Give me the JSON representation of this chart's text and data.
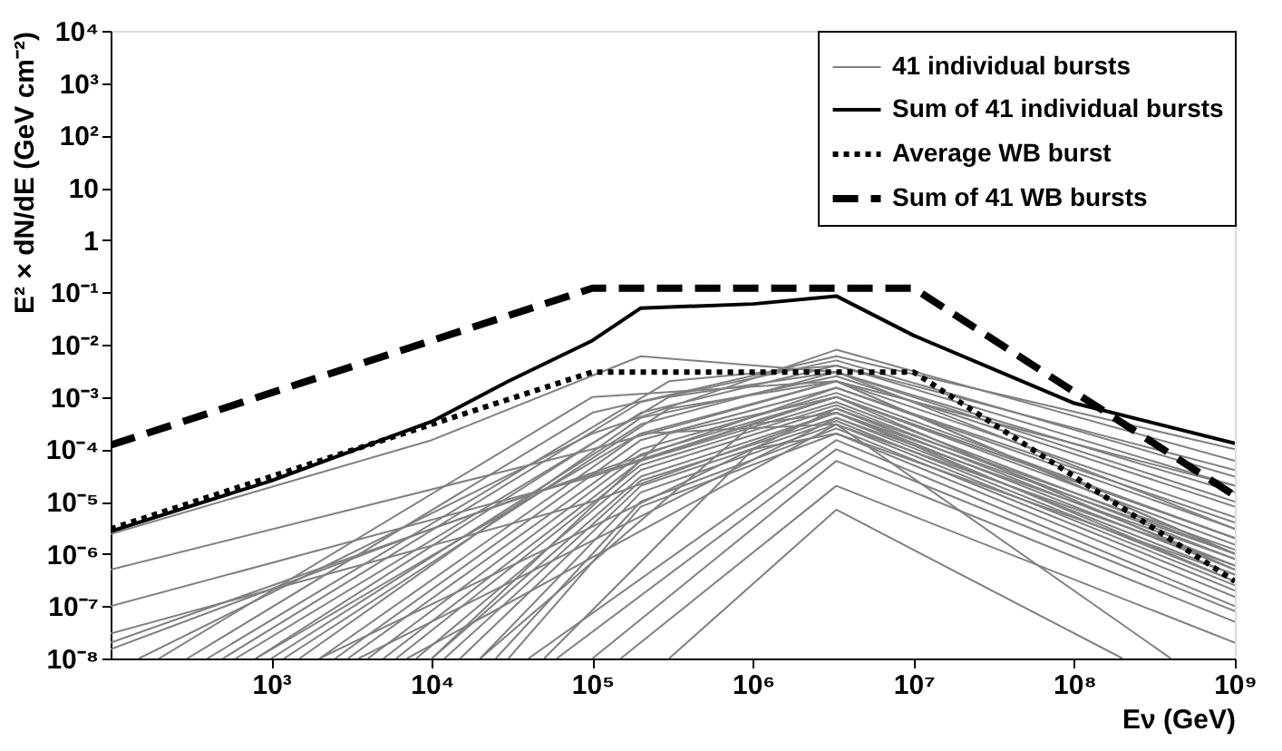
{
  "chart_data": {
    "type": "line",
    "xlabel": "Eν (GeV)",
    "ylabel": "E² × dN/dE (GeV cm⁻²)",
    "log": "xy",
    "grid": false,
    "legend": "top right",
    "marker": "none",
    "xlim": [
      100,
      1000000000
    ],
    "ylim": [
      1e-08,
      10000
    ],
    "xticks": [
      {
        "value": 1000,
        "label": "10³"
      },
      {
        "value": 10000,
        "label": "10⁴"
      },
      {
        "value": 100000,
        "label": "10⁵"
      },
      {
        "value": 1000000,
        "label": "10⁶"
      },
      {
        "value": 10000000,
        "label": "10⁷"
      },
      {
        "value": 100000000,
        "label": "10⁸"
      },
      {
        "value": 1000000000,
        "label": "10⁹"
      }
    ],
    "yticks": [
      {
        "value": 1e-08,
        "label": "10⁻⁸"
      },
      {
        "value": 1e-07,
        "label": "10⁻⁷"
      },
      {
        "value": 1e-06,
        "label": "10⁻⁶"
      },
      {
        "value": 1e-05,
        "label": "10⁻⁵"
      },
      {
        "value": 0.0001,
        "label": "10⁻⁴"
      },
      {
        "value": 0.001,
        "label": "10⁻³"
      },
      {
        "value": 0.01,
        "label": "10⁻²"
      },
      {
        "value": 0.1,
        "label": "10⁻¹"
      },
      1,
      10,
      {
        "value": 100,
        "label": "10²"
      },
      {
        "value": 1000,
        "label": "10³"
      },
      {
        "value": 10000,
        "label": "10⁴"
      }
    ],
    "series": [
      {
        "name": "41 individual bursts",
        "color": "#808080",
        "line_style": "solid",
        "x": [
          100,
          10000.0,
          200000.0,
          3300000.0,
          1000000000.0
        ],
        "values": [
          2.4e-06,
          0.00015,
          0.006,
          0.003,
          1e-05
        ]
      },
      {
        "color": "#808080",
        "line_style": "solid",
        "x": [
          100,
          100000.0,
          3300000.0,
          1000000000.0
        ],
        "values": [
          5e-07,
          0.0001,
          0.002,
          1e-06
        ]
      },
      {
        "color": "#808080",
        "line_style": "solid",
        "x": [
          100,
          100000.0,
          3300000.0,
          1000000000.0
        ],
        "values": [
          1e-07,
          3e-05,
          0.001,
          5e-07
        ]
      },
      {
        "color": "#808080",
        "line_style": "solid",
        "x": [
          100,
          100000.0,
          3300000.0,
          1000000000.0
        ],
        "values": [
          3e-08,
          1e-05,
          0.0005,
          3e-07
        ]
      },
      {
        "color": "#808080",
        "line_style": "solid",
        "x": [
          150,
          100000.0,
          3300000.0,
          1000000000.0
        ],
        "values": [
          1e-08,
          0.0002,
          0.008,
          6e-05
        ]
      },
      {
        "color": "#808080",
        "line_style": "solid",
        "x": [
          300,
          100000.0,
          3300000.0,
          1000000000.0
        ],
        "values": [
          1e-08,
          0.0005,
          0.006,
          0.0001
        ]
      },
      {
        "color": "#808080",
        "line_style": "solid",
        "x": [
          500,
          200000.0,
          3300000.0,
          1000000000.0
        ],
        "values": [
          1e-08,
          0.0008,
          0.005,
          3e-05
        ]
      },
      {
        "color": "#808080",
        "line_style": "solid",
        "x": [
          800,
          200000.0,
          3300000.0,
          1000000000.0
        ],
        "values": [
          1e-08,
          0.0005,
          0.004,
          2e-05
        ]
      },
      {
        "color": "#808080",
        "line_style": "solid",
        "x": [
          1000,
          200000.0,
          3300000.0,
          1000000000.0
        ],
        "values": [
          1e-08,
          0.0003,
          0.003,
          1.5e-05
        ]
      },
      {
        "color": "#808080",
        "line_style": "solid",
        "x": [
          1500,
          200000.0,
          3300000.0,
          1000000000.0
        ],
        "values": [
          1e-08,
          0.0004,
          0.0025,
          8e-06
        ]
      },
      {
        "color": "#808080",
        "line_style": "solid",
        "x": [
          2000,
          200000.0,
          3300000.0,
          1000000000.0
        ],
        "values": [
          1e-08,
          0.0002,
          0.002,
          5e-06
        ]
      },
      {
        "color": "#808080",
        "line_style": "solid",
        "x": [
          2500,
          200000.0,
          3300000.0,
          1000000000.0
        ],
        "values": [
          1e-08,
          0.00015,
          0.0015,
          3e-06
        ]
      },
      {
        "color": "#808080",
        "line_style": "solid",
        "x": [
          3000,
          200000.0,
          3300000.0,
          1000000000.0
        ],
        "values": [
          1e-08,
          0.0001,
          0.0012,
          2e-06
        ]
      },
      {
        "color": "#808080",
        "line_style": "solid",
        "x": [
          4000,
          200000.0,
          3300000.0,
          1000000000.0
        ],
        "values": [
          1e-08,
          8e-05,
          0.001,
          1.5e-06
        ]
      },
      {
        "color": "#808080",
        "line_style": "solid",
        "x": [
          5000,
          200000.0,
          3300000.0,
          1000000000.0
        ],
        "values": [
          1e-08,
          6e-05,
          0.0008,
          1e-06
        ]
      },
      {
        "color": "#808080",
        "line_style": "solid",
        "x": [
          6000,
          200000.0,
          3300000.0,
          1000000000.0
        ],
        "values": [
          1e-08,
          5e-05,
          0.0007,
          8e-07
        ]
      },
      {
        "color": "#808080",
        "line_style": "solid",
        "x": [
          8000,
          200000.0,
          3300000.0,
          1000000000.0
        ],
        "values": [
          1e-08,
          4e-05,
          0.0006,
          6e-07
        ]
      },
      {
        "color": "#808080",
        "line_style": "solid",
        "x": [
          10000.0,
          200000.0,
          3300000.0,
          1000000000.0
        ],
        "values": [
          1e-08,
          3e-05,
          0.0005,
          5e-07
        ]
      },
      {
        "color": "#808080",
        "line_style": "solid",
        "x": [
          12000.0,
          200000.0,
          3300000.0,
          1000000000.0
        ],
        "values": [
          1e-08,
          2.5e-05,
          0.0004,
          4e-07
        ]
      },
      {
        "color": "#808080",
        "line_style": "solid",
        "x": [
          15000.0,
          200000.0,
          3300000.0,
          1000000000.0
        ],
        "values": [
          1e-08,
          2e-05,
          0.00035,
          3e-07
        ]
      },
      {
        "color": "#808080",
        "line_style": "solid",
        "x": [
          20000.0,
          200000.0,
          3300000.0,
          1000000000.0
        ],
        "values": [
          1e-08,
          1.5e-05,
          0.0003,
          2.5e-07
        ]
      },
      {
        "color": "#808080",
        "line_style": "solid",
        "x": [
          25000.0,
          200000.0,
          3300000.0,
          1000000000.0
        ],
        "values": [
          1e-08,
          1e-05,
          0.00025,
          2e-07
        ]
      },
      {
        "color": "#808080",
        "line_style": "solid",
        "x": [
          30000.0,
          200000.0,
          3300000.0,
          1000000000.0
        ],
        "values": [
          1e-08,
          8e-06,
          0.0002,
          1.5e-07
        ]
      },
      {
        "color": "#808080",
        "line_style": "solid",
        "x": [
          40000.0,
          3300000.0,
          1000000000.0
        ],
        "values": [
          1e-08,
          0.00015,
          1e-07
        ]
      },
      {
        "color": "#808080",
        "line_style": "solid",
        "x": [
          60000.0,
          3300000.0,
          1000000000.0
        ],
        "values": [
          1e-08,
          0.0001,
          8e-08
        ]
      },
      {
        "color": "#808080",
        "line_style": "solid",
        "x": [
          100000.0,
          3300000.0,
          1000000000.0
        ],
        "values": [
          1e-08,
          6e-05,
          5e-08
        ]
      },
      {
        "color": "#808080",
        "line_style": "solid",
        "x": [
          150000.0,
          3300000.0,
          1000000000.0
        ],
        "values": [
          1e-08,
          2e-05,
          2e-08
        ]
      },
      {
        "color": "#808080",
        "line_style": "solid",
        "x": [
          300000.0,
          3300000.0,
          200000000.0
        ],
        "values": [
          1e-08,
          7e-06,
          1e-08
        ]
      },
      {
        "color": "#808080",
        "line_style": "solid",
        "x": [
          200,
          100000.0,
          3300000.0,
          1000000000.0
        ],
        "values": [
          1e-08,
          0.001,
          0.002,
          2e-05
        ]
      },
      {
        "color": "#808080",
        "line_style": "solid",
        "x": [
          400,
          300000.0,
          3300000.0,
          1000000000.0
        ],
        "values": [
          1e-08,
          0.002,
          0.004,
          4e-05
        ]
      },
      {
        "color": "#808080",
        "line_style": "solid",
        "x": [
          600,
          300000.0,
          3300000.0,
          1000000000.0
        ],
        "values": [
          1e-08,
          0.001,
          0.003,
          3e-06
        ]
      },
      {
        "color": "#808080",
        "line_style": "solid",
        "x": [
          1200,
          300000.0,
          3300000.0,
          1000000000.0
        ],
        "values": [
          1e-08,
          0.0006,
          0.002,
          1e-06
        ]
      },
      {
        "color": "#808080",
        "line_style": "solid",
        "x": [
          100,
          10000.0,
          3300000.0,
          1000000000.0
        ],
        "values": [
          1.5e-08,
          3e-06,
          0.0015,
          4e-06
        ]
      },
      {
        "color": "#808080",
        "line_style": "solid",
        "x": [
          100,
          30000.0,
          3300000.0,
          1000000000.0
        ],
        "values": [
          2e-08,
          1e-05,
          0.001,
          2e-06
        ]
      },
      {
        "color": "#808080",
        "line_style": "solid",
        "x": [
          2000,
          3300000.0,
          1000000000.0
        ],
        "values": [
          1e-08,
          0.0006,
          1.2e-06
        ]
      },
      {
        "color": "#808080",
        "line_style": "solid",
        "x": [
          3500,
          3300000.0,
          1000000000.0
        ],
        "values": [
          1e-08,
          0.0004,
          8e-07
        ]
      },
      {
        "color": "#808080",
        "line_style": "solid",
        "x": [
          7000,
          3300000.0,
          1000000000.0
        ],
        "values": [
          1e-08,
          0.0003,
          6e-07
        ]
      },
      {
        "color": "#808080",
        "line_style": "solid",
        "x": [
          20000.0,
          1000000.0,
          3300000.0,
          1000000000.0
        ],
        "values": [
          1e-08,
          0.0003,
          0.0005,
          1e-06
        ]
      },
      {
        "color": "#808080",
        "line_style": "solid",
        "x": [
          50000.0,
          1000000.0,
          3300000.0,
          1000000000.0
        ],
        "values": [
          1e-08,
          0.0001,
          0.0002,
          4e-07
        ]
      },
      {
        "color": "#808080",
        "line_style": "solid",
        "x": [
          10000.0,
          300000.0,
          3300000.0,
          1000000000.0
        ],
        "values": [
          1e-08,
          0.0002,
          0.001,
          2e-06
        ]
      },
      {
        "color": "#808080",
        "line_style": "solid",
        "x": [
          800,
          200000.0,
          3300000.0,
          400000000.0
        ],
        "values": [
          1e-08,
          0.0002,
          0.0003,
          1e-08
        ]
      },
      {
        "name": "Sum of 41 individual bursts",
        "color": "#000000",
        "line_style": "solid",
        "x": [
          100,
          1000,
          10000.0,
          30000.0,
          100000.0,
          200000.0,
          1000000.0,
          3300000.0,
          10000000.0,
          100000000.0,
          1000000000.0
        ],
        "values": [
          2.7e-06,
          2.5e-05,
          0.00034,
          0.002,
          0.012,
          0.05,
          0.06,
          0.085,
          0.015,
          0.00076,
          0.00013
        ]
      },
      {
        "name": "Average WB burst",
        "color": "#000000",
        "line_style": "dotted",
        "x": [
          100,
          100000.0,
          10000000.0,
          1000000000.0
        ],
        "values": [
          3e-06,
          0.003,
          0.003,
          3e-07
        ]
      },
      {
        "name": "Sum of 41 WB bursts",
        "color": "#000000",
        "line_style": "dashed",
        "x": [
          100,
          100000.0,
          10000000.0,
          1000000000.0
        ],
        "values": [
          0.00012,
          0.12,
          0.12,
          1.3e-05
        ]
      }
    ]
  }
}
